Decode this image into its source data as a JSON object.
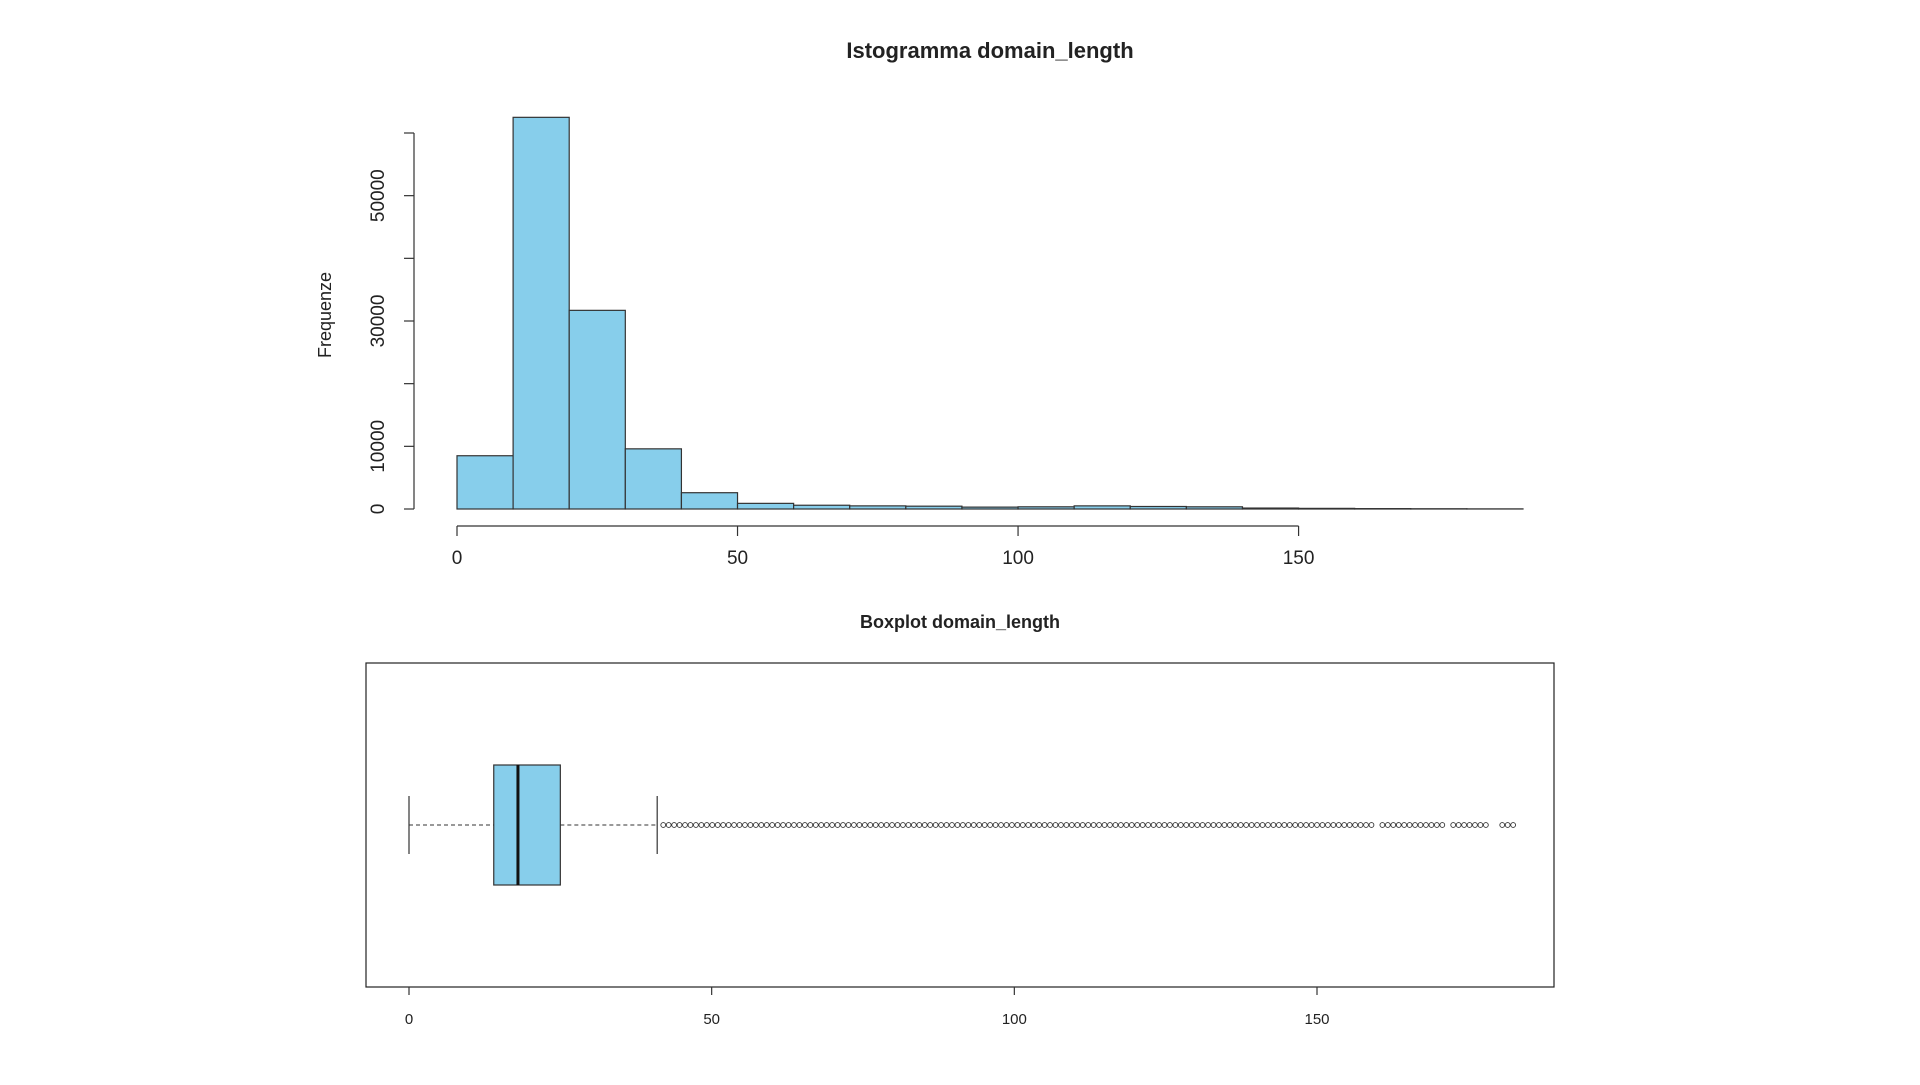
{
  "chart_data": [
    {
      "type": "bar",
      "title": "Istogramma domain_length",
      "xlabel": "",
      "ylabel": "Frequenze",
      "bin_edges": [
        0,
        10,
        20,
        30,
        40,
        50,
        60,
        70,
        80,
        90,
        100,
        110,
        120,
        130,
        140,
        150,
        160,
        170,
        180,
        190
      ],
      "values": [
        8500,
        62500,
        31700,
        9600,
        2600,
        900,
        600,
        500,
        450,
        300,
        350,
        500,
        400,
        350,
        150,
        100,
        60,
        40,
        20
      ],
      "xlim": [
        0,
        190
      ],
      "ylim": [
        0,
        60000
      ],
      "x_ticks": [
        "0",
        "50",
        "100",
        "150"
      ],
      "y_ticks": [
        "0",
        "10000",
        "30000",
        "50000"
      ],
      "bar_color": "#87CEEB",
      "grid": false
    },
    {
      "type": "boxplot",
      "title": "Boxplot domain_length",
      "orientation": "horizontal",
      "whisker_low": 0,
      "q1": 14,
      "median": 18,
      "q3": 25,
      "whisker_high": 41,
      "outliers_from": 42,
      "outliers_to": 183,
      "xlim": [
        0,
        183
      ],
      "x_ticks": [
        "0",
        "50",
        "100",
        "150"
      ],
      "box_color": "#87CEEB",
      "grid": false
    }
  ]
}
